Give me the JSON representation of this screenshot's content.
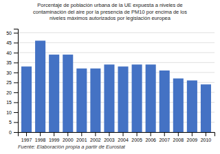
{
  "chart_data": {
    "type": "bar",
    "title": "Porcentaje de población urbana de la UE expuesta a niveles de\ncontaminación del aire por la presencia de PM10 por encima de los\nniveles máximos autorizados por legislación europea",
    "categories": [
      "1997",
      "1998",
      "1999",
      "2000",
      "2001",
      "2002",
      "2003",
      "2004",
      "2005",
      "2006",
      "2007",
      "2008",
      "2009",
      "2010"
    ],
    "values": [
      33,
      46,
      39,
      39,
      32,
      32,
      34,
      33,
      34,
      34,
      31,
      27,
      26,
      24
    ],
    "color": "#4472C4",
    "ylim": [
      0,
      52
    ],
    "yticks": [
      0,
      5,
      10,
      15,
      20,
      25,
      30,
      35,
      40,
      45,
      50
    ],
    "grid": true,
    "annotations": [
      "Fuente: Elaboración propia a partir de Eurostat"
    ]
  }
}
